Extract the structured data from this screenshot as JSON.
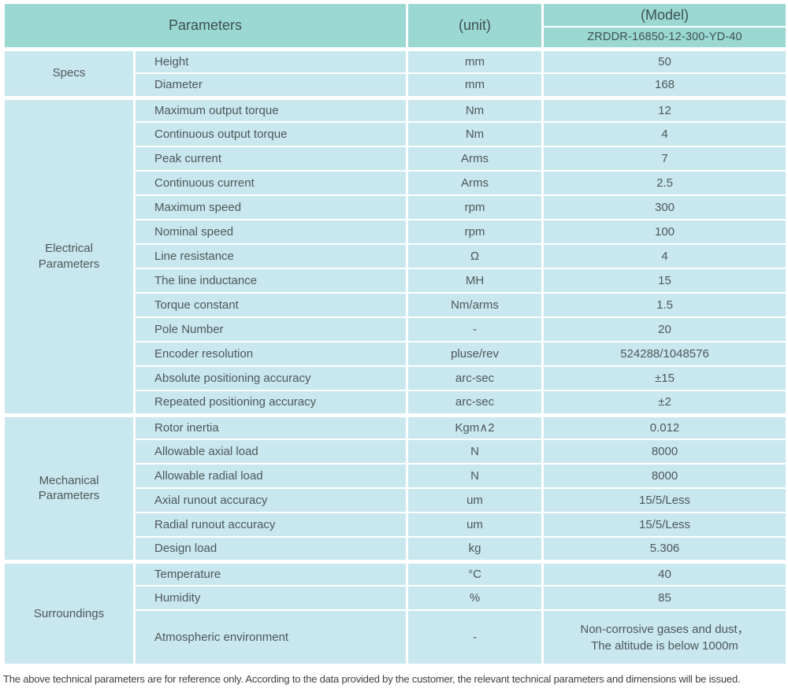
{
  "header": {
    "parameters": "Parameters",
    "unit": "(unit)",
    "model_label": "(Model)",
    "model_value": "ZRDDR-16850-12-300-YD-40"
  },
  "groups": [
    {
      "name": "Specs",
      "rows": [
        {
          "param": "Height",
          "unit": "mm",
          "value": "50"
        },
        {
          "param": "Diameter",
          "unit": "mm",
          "value": "168"
        }
      ]
    },
    {
      "name": "Electrical\nParameters",
      "rows": [
        {
          "param": "Maximum output torque",
          "unit": "Nm",
          "value": "12"
        },
        {
          "param": "Continuous output torque",
          "unit": "Nm",
          "value": "4"
        },
        {
          "param": "Peak current",
          "unit": "Arms",
          "value": "7"
        },
        {
          "param": "Continuous current",
          "unit": "Arms",
          "value": "2.5"
        },
        {
          "param": "Maximum speed",
          "unit": "rpm",
          "value": "300"
        },
        {
          "param": "Nominal speed",
          "unit": "rpm",
          "value": "100"
        },
        {
          "param": "Line resistance",
          "unit": "Ω",
          "value": "4"
        },
        {
          "param": "The line inductance",
          "unit": "MH",
          "value": "15"
        },
        {
          "param": "Torque constant",
          "unit": "Nm/arms",
          "value": "1.5"
        },
        {
          "param": "Pole Number",
          "unit": "-",
          "value": "20"
        },
        {
          "param": "Encoder resolution",
          "unit": "pluse/rev",
          "value": "524288/1048576"
        },
        {
          "param": "Absolute positioning accuracy",
          "unit": "arc-sec",
          "value": "±15"
        },
        {
          "param": "Repeated positioning accuracy",
          "unit": "arc-sec",
          "value": "±2"
        }
      ]
    },
    {
      "name": "Mechanical\nParameters",
      "rows": [
        {
          "param": "Rotor inertia",
          "unit": "Kgm∧2",
          "value": "0.012"
        },
        {
          "param": "Allowable axial load",
          "unit": "N",
          "value": "8000"
        },
        {
          "param": "Allowable radial load",
          "unit": "N",
          "value": "8000"
        },
        {
          "param": "Axial runout accuracy",
          "unit": "um",
          "value": "15/5/Less"
        },
        {
          "param": "Radial runout accuracy",
          "unit": "um",
          "value": "15/5/Less"
        },
        {
          "param": "Design load",
          "unit": "kg",
          "value": "5.306"
        }
      ]
    },
    {
      "name": "Surroundings",
      "rows": [
        {
          "param": "Temperature",
          "unit": "°C",
          "value": "40"
        },
        {
          "param": "Humidity",
          "unit": "%",
          "value": "85"
        },
        {
          "param": "Atmospheric environment",
          "unit": "-",
          "value": "Non-corrosive gases and dust，\nThe altitude is below 1000m",
          "tall": true
        }
      ]
    }
  ],
  "footer": "The above technical parameters are for reference only. According to the data provided by the customer, the relevant technical parameters and dimensions will be issued.",
  "colors": {
    "header_bg": "#9ad8d1",
    "cell_bg": "#c9e7ee",
    "header_text": "#3e5052",
    "body_text": "#4c585b"
  }
}
